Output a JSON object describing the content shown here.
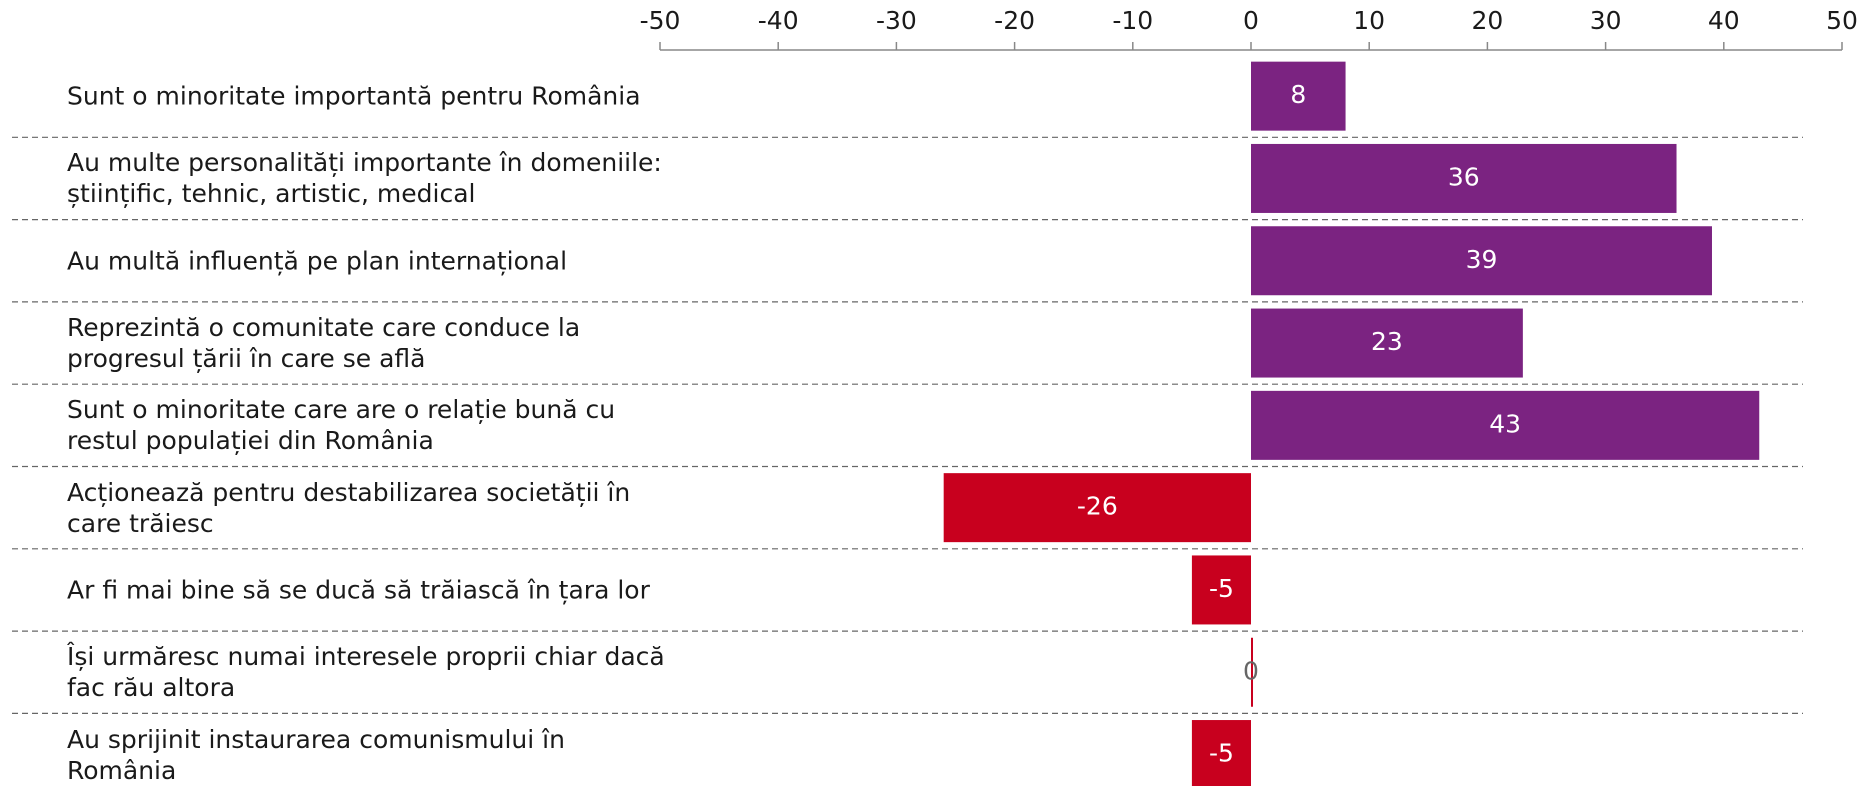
{
  "chart_data": {
    "type": "bar",
    "orientation": "horizontal",
    "categories": [
      "Sunt o minoritate importantă pentru România",
      "Au multe personalități importante în domeniile: științific, tehnic, artistic, medical",
      "Au multă influență pe plan internațional",
      "Reprezintă o comunitate care conduce la progresul țării în care se află",
      "Sunt o minoritate care are o relație bună cu restul populației din România",
      "Acționează pentru destabilizarea societății în care trăiesc",
      "Ar fi mai bine să se ducă să trăiască în țara lor",
      "Își urmăresc numai interesele proprii chiar dacă fac rău altora",
      "Au sprijinit instaurarea comunismului în România"
    ],
    "values": [
      8,
      36,
      39,
      23,
      43,
      -26,
      -5,
      0,
      -5
    ],
    "positive_color": "#7b2381",
    "negative_color": "#c8001e",
    "xlim": [
      -50,
      50
    ],
    "xticks": [
      -50,
      -40,
      -30,
      -20,
      -10,
      0,
      10,
      20,
      30,
      40,
      50
    ]
  }
}
